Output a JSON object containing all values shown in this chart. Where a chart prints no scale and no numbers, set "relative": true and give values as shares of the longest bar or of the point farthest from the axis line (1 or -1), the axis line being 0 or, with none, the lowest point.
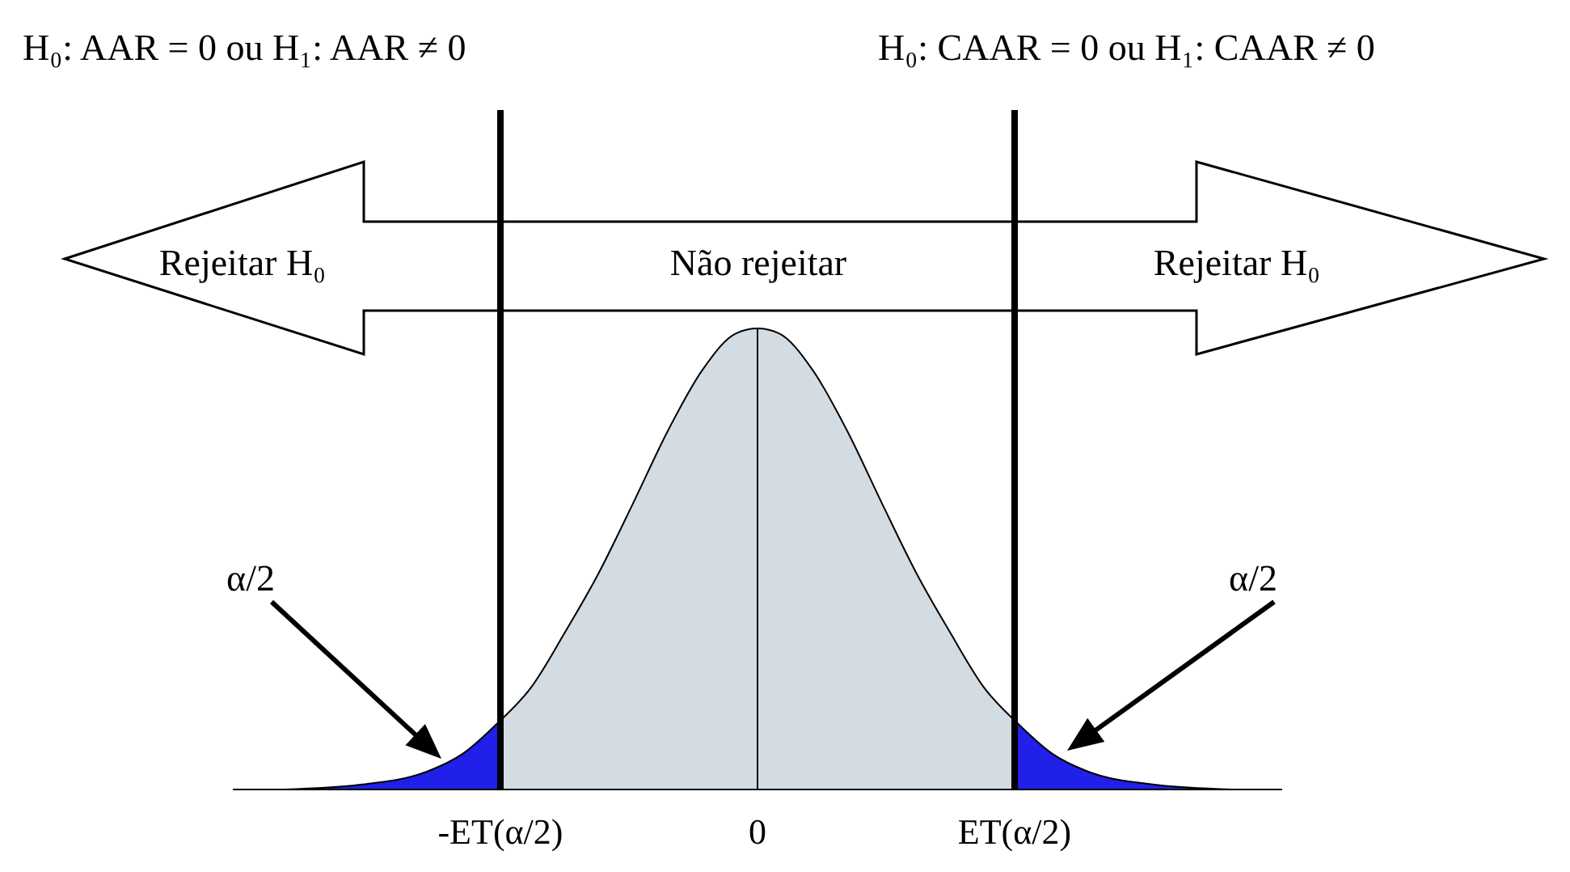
{
  "chart_data": {
    "type": "area",
    "relative": true,
    "xlim": [
      -4,
      4
    ],
    "xticks": [
      {
        "value": -1.96,
        "label": "-ET(α/2)"
      },
      0,
      {
        "value": 1.96,
        "label": "ET(α/2)"
      }
    ],
    "series": [
      {
        "color": "#2020e8",
        "x": [
          -3.61,
          -3.04,
          -2.51,
          -2.25,
          -1.96
        ],
        "values": [
          0.0,
          0.01,
          0.04,
          0.077,
          0.15
        ]
      },
      {
        "color": "#d3dbe3",
        "x": [
          -1.96,
          -1.73,
          -1.47,
          -1.21,
          -0.95,
          -0.68,
          -0.42,
          -0.16,
          0,
          0.16,
          0.42,
          0.68,
          0.95,
          1.21,
          1.47,
          1.73,
          1.96
        ],
        "values": [
          0.15,
          0.22,
          0.34,
          0.47,
          0.62,
          0.78,
          0.91,
          0.99,
          1,
          0.99,
          0.91,
          0.78,
          0.62,
          0.47,
          0.34,
          0.22,
          0.15
        ]
      },
      {
        "color": "#2020e8",
        "x": [
          1.96,
          2.25,
          2.51,
          3.04,
          3.62
        ],
        "values": [
          0.15,
          0.077,
          0.04,
          0.01,
          0.0
        ]
      }
    ],
    "ref_lines": [
      {
        "axis": "x",
        "value": -1.96,
        "color": "#000000"
      },
      {
        "axis": "x",
        "value": 0,
        "color": "#000000"
      },
      {
        "axis": "x",
        "value": 1.96,
        "color": "#000000"
      }
    ],
    "annotations": [
      "H₀: AAR = 0 ou H₁: AAR ≠ 0",
      "H₀: CAAR = 0 ou H₁: CAAR ≠ 0",
      "Rejeitar H₀",
      "Não rejeitar",
      "Rejeitar H₀",
      "α/2",
      "α/2"
    ],
    "grid": false,
    "legend": false
  }
}
